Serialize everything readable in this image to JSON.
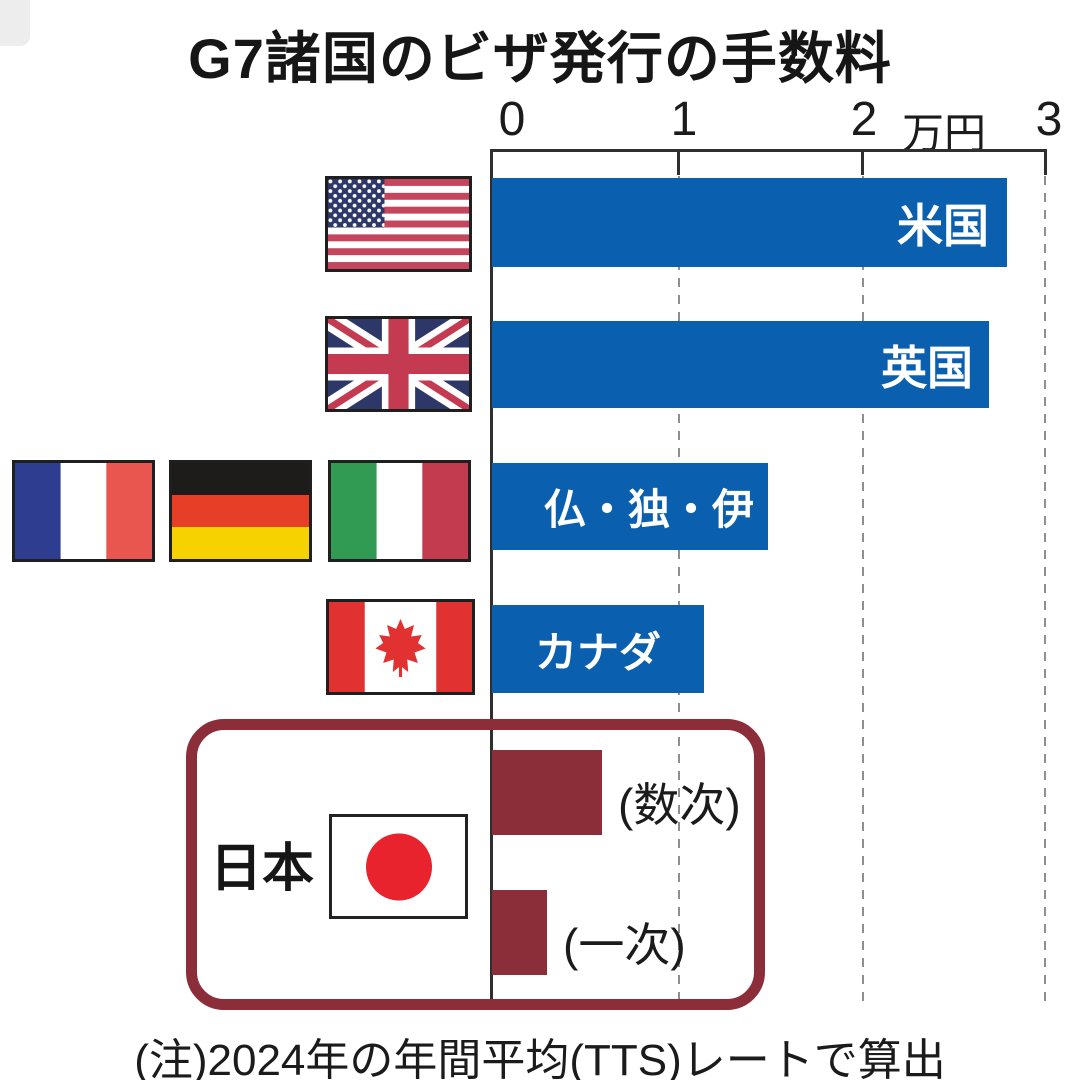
{
  "title": "G7諸国のビザ発行の手数料",
  "note": "(注)2024年の年間平均(TTS)レートで算出",
  "axis": {
    "tick_labels": [
      "0",
      "1",
      "2",
      "3"
    ],
    "unit_label": "万円",
    "min": 0,
    "max": 3
  },
  "rows": [
    {
      "label": "米国",
      "value": 2.8,
      "flags": [
        "usa"
      ]
    },
    {
      "label": "英国",
      "value": 2.7,
      "flags": [
        "uk"
      ]
    },
    {
      "label": "仏・独・伊",
      "value": 1.5,
      "flags": [
        "france",
        "germany",
        "italy"
      ]
    },
    {
      "label": "カナダ",
      "value": 1.15,
      "flags": [
        "canada"
      ]
    }
  ],
  "japan": {
    "label": "日本",
    "flags": [
      "japan"
    ],
    "bars": [
      {
        "label": "(数次)",
        "value": 0.6
      },
      {
        "label": "(一次)",
        "value": 0.3
      }
    ]
  },
  "colors": {
    "bar_blue": "#0a5fae",
    "bar_maroon": "#8b2e3a",
    "japan_box_border": "#8b2e3a",
    "gridline_gray": "#8f8f8f",
    "axis_line": "#2f2f2f",
    "bar_label_text": "#ffffff",
    "body_text": "#161616",
    "japan_flag_red": "#e8232d",
    "canada_flag_red": "#e23131"
  },
  "chart_data": {
    "type": "bar",
    "orientation": "horizontal",
    "title": "G7諸国のビザ発行の手数料",
    "unit": "万円",
    "categories": [
      "米国",
      "英国",
      "仏・独・伊",
      "カナダ",
      "日本(数次)",
      "日本(一次)"
    ],
    "values": [
      2.8,
      2.7,
      1.5,
      1.15,
      0.6,
      0.3
    ],
    "xlim": [
      0,
      3
    ],
    "x_ticks": [
      0,
      1,
      2,
      3
    ],
    "grid": "dashed vertical gridlines at 1, 2 and 3",
    "bar_colors": [
      "#0a5fae",
      "#0a5fae",
      "#0a5fae",
      "#0a5fae",
      "#8b2e3a",
      "#8b2e3a"
    ],
    "annotations": [
      "(数次)",
      "(一次)"
    ],
    "highlight": "日本の2本の棒は暗赤色の角丸枠で囲まれている",
    "note": "(注)2024年の年間平均(TTS)レートで算出"
  }
}
